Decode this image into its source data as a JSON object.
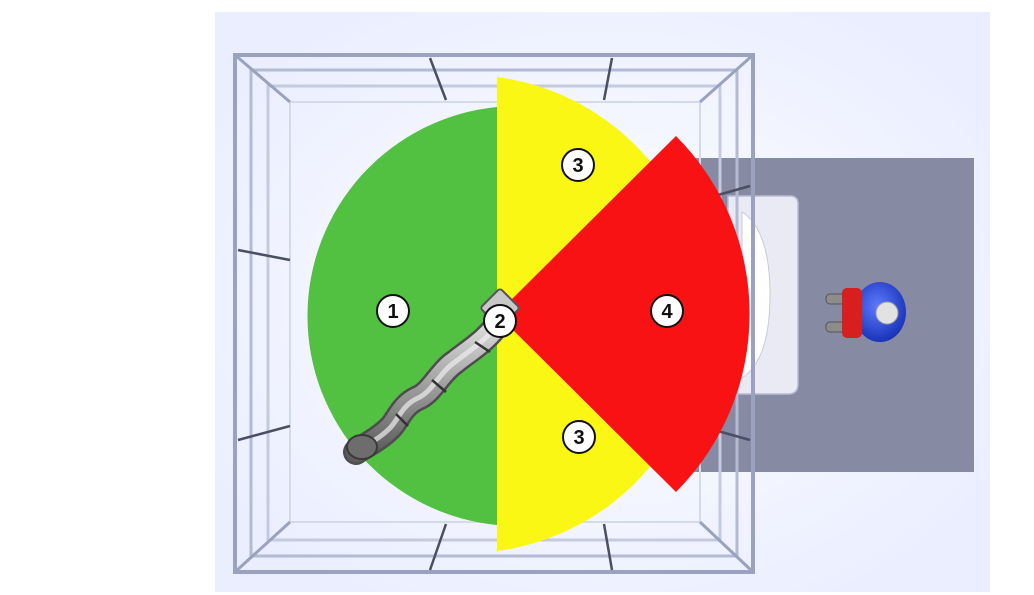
{
  "colors": {
    "background": "#ffffff",
    "floor": "#f4f6ff",
    "fence_frame": "#8f97b5",
    "fence_bar": "#4a4f63",
    "operator_area": "#868aa2",
    "zone_safe": "#52c041",
    "zone_warning": "#fbf714",
    "zone_danger": "#f91213",
    "robot_arm": "#9a9a9a",
    "person_shirt": "#1f3fd6",
    "person_vest": "#d81f1f"
  },
  "zones": [
    {
      "id": "zone-1",
      "label": "1",
      "type": "safe",
      "color_key": "zone_safe"
    },
    {
      "id": "zone-2",
      "label": "2",
      "type": "robot-base",
      "color_key": "robot_arm"
    },
    {
      "id": "zone-3-top",
      "label": "3",
      "type": "warning",
      "color_key": "zone_warning"
    },
    {
      "id": "zone-3-bottom",
      "label": "3",
      "type": "warning",
      "color_key": "zone_warning"
    },
    {
      "id": "zone-4",
      "label": "4",
      "type": "danger",
      "color_key": "zone_danger"
    }
  ],
  "icons": {
    "robot": "robot-arm-icon",
    "person": "person-icon",
    "workstation": "workstation-icon",
    "fence": "safety-fence-icon"
  }
}
